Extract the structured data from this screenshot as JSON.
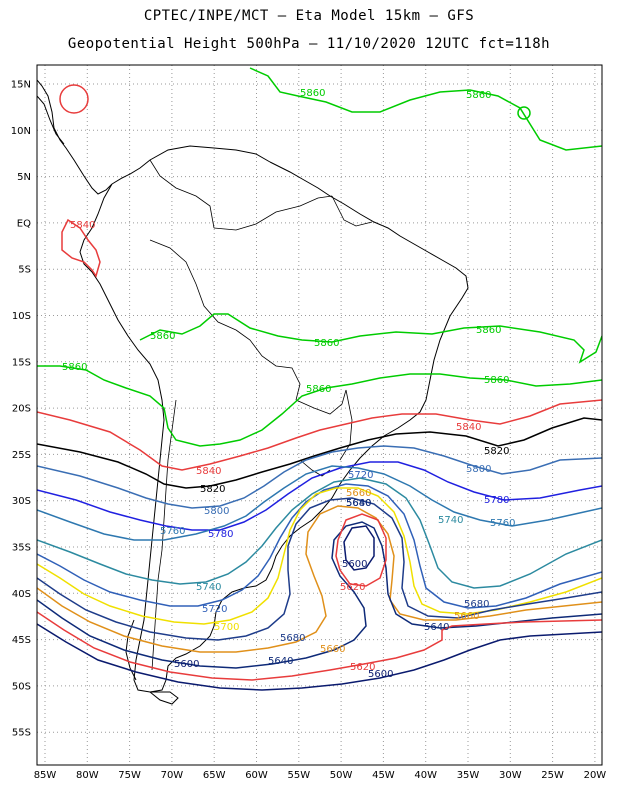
{
  "title_line1": "CPTEC/INPE/MCT –  Eta Model 15km – GFS",
  "title_line2": "Geopotential Height 500hPa – 11/10/2020 12UTC fct=118h",
  "lat_labels": [
    "15N",
    "10N",
    "5N",
    "EQ",
    "5S",
    "10S",
    "15S",
    "20S",
    "25S",
    "30S",
    "35S",
    "40S",
    "45S",
    "50S",
    "55S"
  ],
  "lon_labels": [
    "85W",
    "80W",
    "75W",
    "70W",
    "65W",
    "60W",
    "55W",
    "50W",
    "45W",
    "40W",
    "35W",
    "30W",
    "25W",
    "20W"
  ],
  "contour_colors": {
    "5600": "#0a1a6e",
    "5620": "#e83c3c",
    "5640": "#0e2a78",
    "5660": "#e0901a",
    "5680": "#1e3c8a",
    "5700": "#f0e000",
    "5720": "#3060b8",
    "5740": "#2c8aa0",
    "5760": "#2e78b0",
    "5780": "#2020e0",
    "5800": "#3a6eb4",
    "5820": "#000000",
    "5840": "#e83c3c",
    "5860": "#00cc00"
  },
  "contour_labels": [
    {
      "text": "5860",
      "color": "5860"
    },
    {
      "text": "5860",
      "color": "5860"
    },
    {
      "text": "5860",
      "color": "5860"
    },
    {
      "text": "5860",
      "color": "5860"
    },
    {
      "text": "5860",
      "color": "5860"
    },
    {
      "text": "5860",
      "color": "5860"
    },
    {
      "text": "5860",
      "color": "5860"
    },
    {
      "text": "5860",
      "color": "5860"
    },
    {
      "text": "5840",
      "color": "5840"
    },
    {
      "text": "5840",
      "color": "5840"
    },
    {
      "text": "5840",
      "color": "5840"
    },
    {
      "text": "5820",
      "color": "5820"
    },
    {
      "text": "5820",
      "color": "5820"
    },
    {
      "text": "5800",
      "color": "5800"
    },
    {
      "text": "5800",
      "color": "5800"
    },
    {
      "text": "5780",
      "color": "5780"
    },
    {
      "text": "5780",
      "color": "5780"
    },
    {
      "text": "5760",
      "color": "5760"
    },
    {
      "text": "5760",
      "color": "5760"
    },
    {
      "text": "5740",
      "color": "5740"
    },
    {
      "text": "5740",
      "color": "5740"
    },
    {
      "text": "5720",
      "color": "5720"
    },
    {
      "text": "5720",
      "color": "5720"
    },
    {
      "text": "5700",
      "color": "5700"
    },
    {
      "text": "5680",
      "color": "5680"
    },
    {
      "text": "5680",
      "color": "5680"
    },
    {
      "text": "5680",
      "color": "5680"
    },
    {
      "text": "5660",
      "color": "5660"
    },
    {
      "text": "5660",
      "color": "5660"
    },
    {
      "text": "5660",
      "color": "5660"
    },
    {
      "text": "5640",
      "color": "5640"
    },
    {
      "text": "5640",
      "color": "5640"
    },
    {
      "text": "5640",
      "color": "5640"
    },
    {
      "text": "5620",
      "color": "5620"
    },
    {
      "text": "5620",
      "color": "5620"
    },
    {
      "text": "5600",
      "color": "5600"
    },
    {
      "text": "5600",
      "color": "5600"
    },
    {
      "text": "5600",
      "color": "5600"
    }
  ]
}
